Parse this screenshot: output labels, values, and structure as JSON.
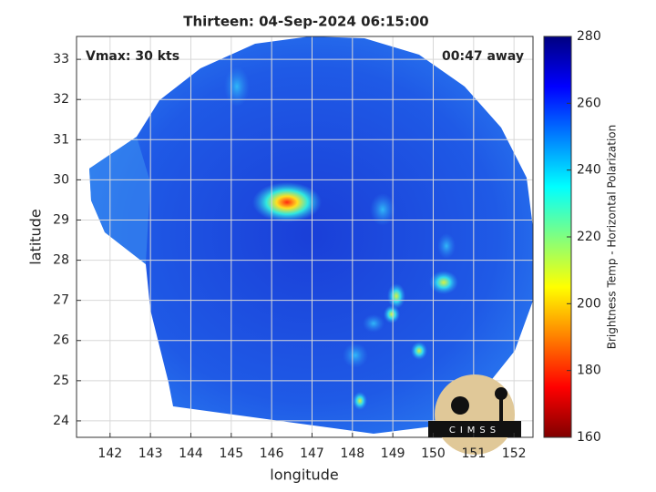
{
  "chart_data": {
    "type": "map",
    "title": "Thirteen: 04-Sep-2024 06:15:00",
    "annotations": [
      "Vmax: 30 kts",
      "00:47 away"
    ],
    "x_label": "longitude",
    "y_label": "latitude",
    "xlim": [
      141.17,
      152.47
    ],
    "xticks": [
      142,
      143,
      144,
      145,
      146,
      147,
      148,
      149,
      150,
      151,
      152
    ],
    "ylim": [
      23.59,
      33.57
    ],
    "yticks": [
      24,
      25,
      26,
      27,
      28,
      29,
      30,
      31,
      32,
      33
    ],
    "grid": true,
    "colorbar": {
      "label": "Brightness Temp - Horizontal Polarization",
      "colormap": "jet",
      "lim": [
        160,
        280
      ],
      "ticks": [
        160,
        180,
        200,
        220,
        240,
        260,
        280
      ]
    },
    "logo": "CIMSS"
  }
}
